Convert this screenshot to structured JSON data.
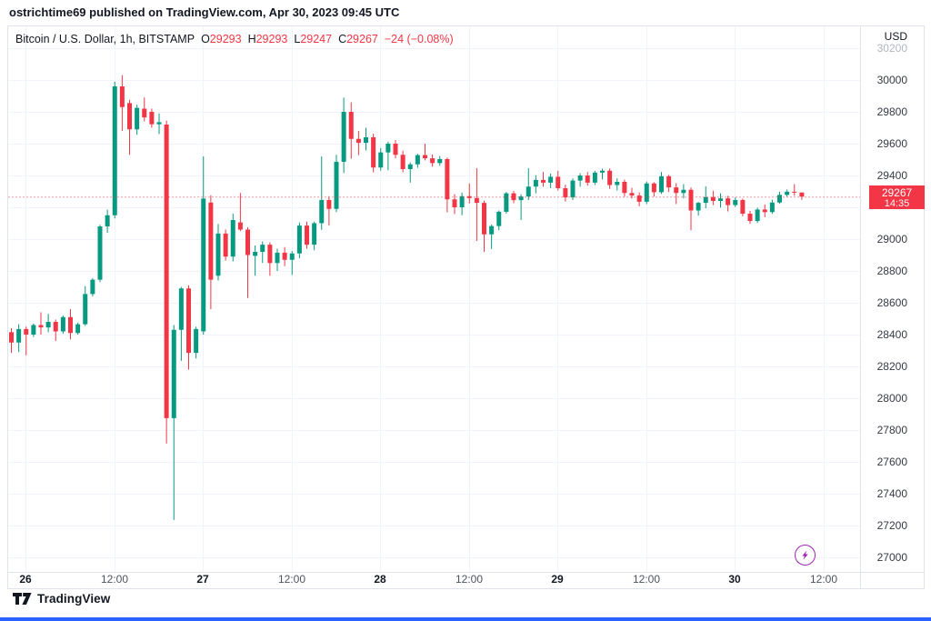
{
  "topbar": {
    "attribution": "ostrichtime69 published on TradingView.com, Apr 30, 2023 09:45 UTC"
  },
  "legend": {
    "symbol": "Bitcoin / U.S. Dollar, 1h, BITSTAMP",
    "open_label": "O",
    "open_value": "29293",
    "high_label": "H",
    "high_value": "29293",
    "low_label": "L",
    "low_value": "29247",
    "close_label": "C",
    "close_value": "29267",
    "change_text": "−24 (−0.08%)"
  },
  "price_axis": {
    "currency_label": "USD",
    "ticks": [
      30200,
      30000,
      29800,
      29600,
      29400,
      29200,
      29000,
      28800,
      28600,
      28400,
      28200,
      28000,
      27800,
      27600,
      27400,
      27200,
      27000
    ],
    "hidden_tick_labels": [
      29200
    ],
    "badge": {
      "price": "29267",
      "countdown": "14:35"
    }
  },
  "time_axis": {
    "labels": [
      {
        "text": "26",
        "bold": true
      },
      {
        "text": "12:00",
        "bold": false
      },
      {
        "text": "27",
        "bold": true
      },
      {
        "text": "12:00",
        "bold": false
      },
      {
        "text": "28",
        "bold": true
      },
      {
        "text": "12:00",
        "bold": false
      },
      {
        "text": "29",
        "bold": true
      },
      {
        "text": "12:00",
        "bold": false
      },
      {
        "text": "30",
        "bold": true
      },
      {
        "text": "12:00",
        "bold": false
      }
    ]
  },
  "footer": {
    "brand": "TradingView"
  },
  "colors": {
    "up": "#089981",
    "down": "#f23645",
    "grid": "#f0f3fa",
    "frame": "#e0e3eb",
    "text_dark": "#131722",
    "axis_text": "#363a45",
    "axis_text_faded": "#b2b5be",
    "time_text": "#50535e",
    "price_line": "#f23645",
    "badge_bg": "#f23645",
    "flash": "#9c27b0",
    "accent_bottom": "#2962ff"
  },
  "chart_data": {
    "type": "candlestick",
    "title": "Bitcoin / U.S. Dollar",
    "interval": "1h",
    "exchange": "BITSTAMP",
    "quote_currency": "USD",
    "ylim": [
      27000,
      30200
    ],
    "y_tick_step": 200,
    "x_labels": [
      "26",
      "12:00",
      "27",
      "12:00",
      "28",
      "12:00",
      "29",
      "12:00",
      "30",
      "12:00"
    ],
    "grid": true,
    "last": {
      "open": 29293,
      "high": 29293,
      "low": 29247,
      "close": 29267,
      "change": -24,
      "change_pct": -0.08,
      "countdown": "14:35"
    },
    "candles": [
      [
        28415,
        28440,
        28285,
        28350
      ],
      [
        28350,
        28465,
        28290,
        28435
      ],
      [
        28435,
        28450,
        28270,
        28400
      ],
      [
        28400,
        28470,
        28385,
        28460
      ],
      [
        28460,
        28540,
        28400,
        28445
      ],
      [
        28445,
        28530,
        28415,
        28480
      ],
      [
        28480,
        28495,
        28360,
        28420
      ],
      [
        28420,
        28520,
        28405,
        28510
      ],
      [
        28510,
        28560,
        28370,
        28410
      ],
      [
        28410,
        28475,
        28400,
        28465
      ],
      [
        28465,
        28705,
        28455,
        28655
      ],
      [
        28655,
        28755,
        28640,
        28745
      ],
      [
        28745,
        29090,
        28730,
        29080
      ],
      [
        29080,
        29185,
        29040,
        29150
      ],
      [
        29150,
        29990,
        29130,
        29960
      ],
      [
        29960,
        30030,
        29680,
        29830
      ],
      [
        29855,
        29875,
        29530,
        29690
      ],
      [
        29690,
        29845,
        29655,
        29825
      ],
      [
        29820,
        29890,
        29740,
        29765
      ],
      [
        29800,
        29820,
        29700,
        29722
      ],
      [
        29722,
        29790,
        29660,
        29735
      ],
      [
        29720,
        29745,
        27715,
        27875
      ],
      [
        27875,
        28460,
        27235,
        28430
      ],
      [
        28430,
        28700,
        28235,
        28690
      ],
      [
        28690,
        28710,
        28180,
        28285
      ],
      [
        28285,
        28450,
        28250,
        28435
      ],
      [
        28420,
        29520,
        28400,
        29255
      ],
      [
        29230,
        29275,
        28560,
        28745
      ],
      [
        28770,
        29095,
        28740,
        29035
      ],
      [
        29035,
        29060,
        28865,
        28890
      ],
      [
        28890,
        29160,
        28860,
        29120
      ],
      [
        29105,
        29290,
        29050,
        29060
      ],
      [
        29060,
        29075,
        28630,
        28900
      ],
      [
        28895,
        28960,
        28770,
        28920
      ],
      [
        28920,
        28985,
        28850,
        28965
      ],
      [
        28965,
        28980,
        28770,
        28850
      ],
      [
        28850,
        28940,
        28800,
        28915
      ],
      [
        28915,
        28950,
        28830,
        28870
      ],
      [
        28870,
        28925,
        28775,
        28910
      ],
      [
        28910,
        29105,
        28880,
        29085
      ],
      [
        29085,
        29110,
        28940,
        28965
      ],
      [
        28965,
        29110,
        28930,
        29100
      ],
      [
        29100,
        29520,
        29058,
        29246
      ],
      [
        29246,
        29270,
        29086,
        29190
      ],
      [
        29190,
        29530,
        29170,
        29486
      ],
      [
        29486,
        29890,
        29415,
        29800
      ],
      [
        29800,
        29860,
        29505,
        29630
      ],
      [
        29630,
        29680,
        29528,
        29605
      ],
      [
        29605,
        29700,
        29558,
        29640
      ],
      [
        29640,
        29662,
        29420,
        29450
      ],
      [
        29450,
        29572,
        29430,
        29545
      ],
      [
        29545,
        29612,
        29432,
        29600
      ],
      [
        29600,
        29622,
        29508,
        29530
      ],
      [
        29530,
        29556,
        29420,
        29440
      ],
      [
        29440,
        29482,
        29355,
        29470
      ],
      [
        29470,
        29536,
        29448,
        29528
      ],
      [
        29528,
        29600,
        29495,
        29508
      ],
      [
        29508,
        29532,
        29455,
        29478
      ],
      [
        29478,
        29522,
        29462,
        29503
      ],
      [
        29503,
        29512,
        29168,
        29250
      ],
      [
        29250,
        29282,
        29158,
        29200
      ],
      [
        29200,
        29292,
        29150,
        29270
      ],
      [
        29270,
        29350,
        29224,
        29258
      ],
      [
        29258,
        29446,
        28988,
        29228
      ],
      [
        29228,
        29242,
        28920,
        29030
      ],
      [
        29030,
        29092,
        28938,
        29082
      ],
      [
        29082,
        29180,
        29056,
        29172
      ],
      [
        29172,
        29296,
        29160,
        29288
      ],
      [
        29288,
        29302,
        29226,
        29245
      ],
      [
        29245,
        29282,
        29120,
        29268
      ],
      [
        29268,
        29446,
        29246,
        29330
      ],
      [
        29330,
        29402,
        29288,
        29372
      ],
      [
        29372,
        29422,
        29330,
        29355
      ],
      [
        29355,
        29412,
        29320,
        29392
      ],
      [
        29392,
        29430,
        29306,
        29320
      ],
      [
        29320,
        29342,
        29236,
        29262
      ],
      [
        29262,
        29382,
        29246,
        29368
      ],
      [
        29368,
        29414,
        29330,
        29400
      ],
      [
        29400,
        29422,
        29336,
        29355
      ],
      [
        29355,
        29430,
        29340,
        29418
      ],
      [
        29418,
        29442,
        29376,
        29430
      ],
      [
        29430,
        29444,
        29316,
        29340
      ],
      [
        29340,
        29382,
        29306,
        29360
      ],
      [
        29360,
        29374,
        29266,
        29290
      ],
      [
        29290,
        29322,
        29256,
        29274
      ],
      [
        29274,
        29294,
        29206,
        29235
      ],
      [
        29235,
        29362,
        29220,
        29350
      ],
      [
        29350,
        29358,
        29268,
        29295
      ],
      [
        29295,
        29422,
        29284,
        29395
      ],
      [
        29395,
        29404,
        29296,
        29325
      ],
      [
        29325,
        29352,
        29220,
        29290
      ],
      [
        29290,
        29346,
        29256,
        29310
      ],
      [
        29310,
        29324,
        29056,
        29180
      ],
      [
        29180,
        29234,
        29148,
        29228
      ],
      [
        29228,
        29332,
        29194,
        29264
      ],
      [
        29264,
        29304,
        29214,
        29240
      ],
      [
        29240,
        29288,
        29198,
        29256
      ],
      [
        29256,
        29272,
        29174,
        29214
      ],
      [
        29214,
        29262,
        29202,
        29246
      ],
      [
        29246,
        29254,
        29144,
        29160
      ],
      [
        29160,
        29178,
        29096,
        29114
      ],
      [
        29114,
        29198,
        29102,
        29186
      ],
      [
        29186,
        29218,
        29138,
        29170
      ],
      [
        29170,
        29248,
        29158,
        29230
      ],
      [
        29230,
        29298,
        29222,
        29278
      ],
      [
        29278,
        29312,
        29266,
        29298
      ],
      [
        29298,
        29345,
        29272,
        29292
      ],
      [
        29293,
        29293,
        29247,
        29267
      ]
    ]
  }
}
